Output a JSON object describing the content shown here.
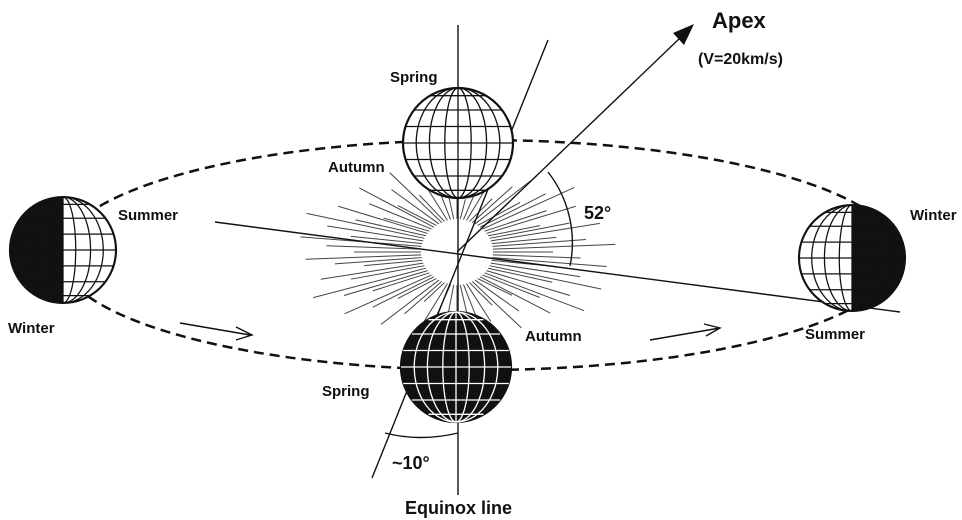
{
  "apex": {
    "label": "Apex",
    "speed": "(V=20km/s)"
  },
  "angles": {
    "ecliptic": "52°",
    "tilt": "~10°"
  },
  "axis_label": "Equinox line",
  "top_globe": {
    "upper": "Spring",
    "lower": "Autumn"
  },
  "bottom_globe": {
    "right": "Autumn",
    "left": "Spring"
  },
  "left_globe": {
    "right": "Summer",
    "lower": "Winter"
  },
  "right_globe": {
    "upper": "Winter",
    "lower": "Summer"
  }
}
